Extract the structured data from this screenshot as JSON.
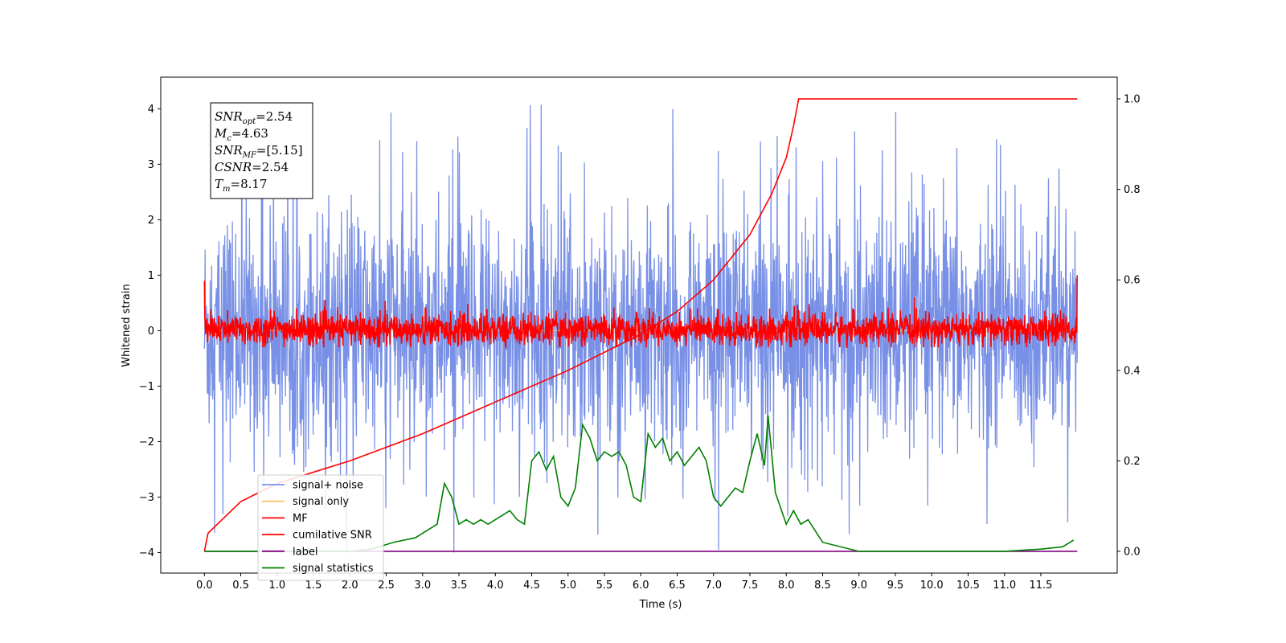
{
  "chart_data": {
    "type": "line",
    "title": "",
    "xlabel": "Time (s)",
    "ylabel": "Whitened strain",
    "xlim": [
      -0.6,
      12.55
    ],
    "ylim": [
      -4.37,
      4.57
    ],
    "y2lim": [
      -0.048,
      1.048
    ],
    "xticks": [
      "0.0",
      "0.5",
      "1.0",
      "1.5",
      "2.0",
      "2.5",
      "3.0",
      "3.5",
      "4.0",
      "4.5",
      "5.0",
      "5.5",
      "6.0",
      "6.5",
      "7.0",
      "7.5",
      "8.0",
      "8.5",
      "9.0",
      "9.5",
      "10.0",
      "10.5",
      "11.0",
      "11.5"
    ],
    "yticks": [
      "−4",
      "−3",
      "−2",
      "−1",
      "0",
      "1",
      "2",
      "3",
      "4"
    ],
    "y2ticks": [
      "0.0",
      "0.2",
      "0.4",
      "0.6",
      "0.8",
      "1.0"
    ],
    "grid": false,
    "legend_position": "lower-left",
    "info_box": {
      "snr_opt": "=2.54",
      "mc": "=4.63",
      "snr_mf": "=[5.15]",
      "csnr": "=2.54",
      "tm": "=8.17"
    },
    "series": [
      {
        "name": "signal+ noise",
        "color": "#7890e6",
        "axis": "left",
        "description_values": {
          "x_range": [
            0,
            12
          ],
          "amplitude_range": [
            -4.0,
            4.2
          ],
          "typical_band": [
            -1.8,
            1.8
          ]
        }
      },
      {
        "name": "signal only",
        "color": "#f5c46b",
        "axis": "left",
        "values": [
          0
        ]
      },
      {
        "name": "MF",
        "color": "#ff0000",
        "axis": "left",
        "description_values": {
          "x_range": [
            0,
            12
          ],
          "typical_band": [
            -0.3,
            0.5
          ]
        }
      },
      {
        "name": "cumilative SNR",
        "color": "#ff0000",
        "axis": "right",
        "x": [
          0,
          0.05,
          0.5,
          1.0,
          2.0,
          3.0,
          4.0,
          5.0,
          5.5,
          6.0,
          6.5,
          7.0,
          7.5,
          7.8,
          8.0,
          8.1,
          8.17,
          12.0
        ],
        "y": [
          0.0,
          0.04,
          0.11,
          0.15,
          0.2,
          0.26,
          0.33,
          0.4,
          0.44,
          0.48,
          0.53,
          0.6,
          0.7,
          0.79,
          0.87,
          0.94,
          1.0,
          1.0
        ]
      },
      {
        "name": "label",
        "color": "#800080",
        "axis": "right",
        "x": [
          0,
          12
        ],
        "y": [
          0,
          0
        ]
      },
      {
        "name": "signal statistics",
        "color": "#008000",
        "axis": "right",
        "x": [
          0,
          0.5,
          1.0,
          1.5,
          2.0,
          2.3,
          2.6,
          2.9,
          3.1,
          3.2,
          3.3,
          3.4,
          3.5,
          3.6,
          3.7,
          3.8,
          3.9,
          4.0,
          4.1,
          4.2,
          4.3,
          4.4,
          4.5,
          4.6,
          4.7,
          4.8,
          4.9,
          5.0,
          5.1,
          5.2,
          5.3,
          5.4,
          5.5,
          5.6,
          5.7,
          5.8,
          5.9,
          6.0,
          6.1,
          6.2,
          6.3,
          6.4,
          6.5,
          6.6,
          6.7,
          6.8,
          6.9,
          7.0,
          7.1,
          7.2,
          7.3,
          7.4,
          7.5,
          7.6,
          7.7,
          7.75,
          7.85,
          8.0,
          8.1,
          8.2,
          8.3,
          8.5,
          9.0,
          9.5,
          10.0,
          10.5,
          11.0,
          11.5,
          11.8,
          11.95
        ],
        "y": [
          0.0,
          0.0,
          0.0,
          0.0,
          0.0,
          0.005,
          0.02,
          0.03,
          0.05,
          0.06,
          0.15,
          0.12,
          0.06,
          0.07,
          0.06,
          0.07,
          0.06,
          0.07,
          0.08,
          0.09,
          0.07,
          0.06,
          0.2,
          0.22,
          0.18,
          0.21,
          0.12,
          0.1,
          0.14,
          0.28,
          0.25,
          0.2,
          0.22,
          0.21,
          0.22,
          0.19,
          0.12,
          0.11,
          0.26,
          0.23,
          0.25,
          0.2,
          0.22,
          0.19,
          0.21,
          0.23,
          0.2,
          0.12,
          0.1,
          0.12,
          0.14,
          0.13,
          0.2,
          0.26,
          0.19,
          0.3,
          0.13,
          0.06,
          0.09,
          0.06,
          0.07,
          0.02,
          0.0,
          0.0,
          0.0,
          0.0,
          0.0,
          0.005,
          0.01,
          0.025
        ]
      }
    ]
  }
}
